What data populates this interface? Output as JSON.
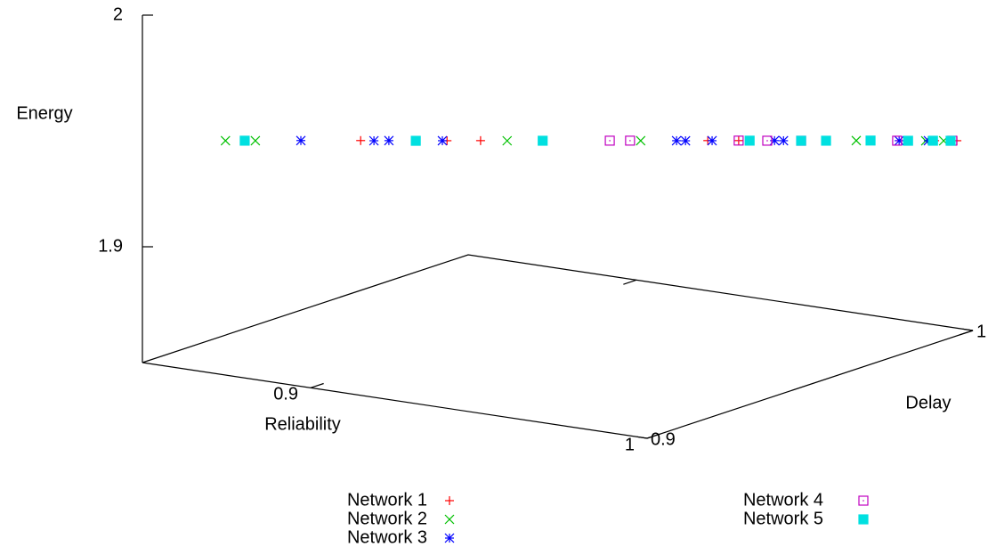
{
  "chart_data": {
    "type": "scatter3d",
    "xlabel": "Reliability",
    "ylabel": "Delay",
    "zlabel": "Energy",
    "xlim": [
      0.85,
      1
    ],
    "ylim": [
      0.9,
      1
    ],
    "zlim": [
      1.85,
      2
    ],
    "xticks": [
      0.9,
      1
    ],
    "yticks": [
      0.9,
      1
    ],
    "zticks": [
      1.9,
      2
    ],
    "legend": "bottom",
    "series": [
      {
        "name": "Network 1",
        "color": "#ff0000",
        "marker": "plus",
        "x": [
          0.8894,
          0.905,
          0.9111,
          0.9521,
          0.9577,
          0.9931,
          0.9963,
          0.9971
        ],
        "y": [
          0.9263,
          0.9367,
          0.9407,
          0.9681,
          0.9718,
          0.9954,
          0.9975,
          0.9981
        ],
        "z": [
          1.9422,
          1.9407,
          1.9402,
          1.9364,
          1.9359,
          1.9326,
          1.9323,
          1.9322
        ]
      },
      {
        "name": "Network 2",
        "color": "#00c000",
        "marker": "cross",
        "x": [
          0.865,
          0.8704,
          0.9159,
          0.94,
          0.9789,
          0.9915,
          0.9947
        ],
        "y": [
          0.91,
          0.9136,
          0.9439,
          0.96,
          0.986,
          0.9943,
          0.9965
        ],
        "z": [
          1.9444,
          1.9439,
          1.9397,
          1.9375,
          1.9339,
          1.9327,
          1.9324
        ]
      },
      {
        "name": "Network 3",
        "color": "#0000ff",
        "marker": "star",
        "x": [
          0.8786,
          0.8918,
          0.8945,
          0.9042,
          0.9465,
          0.9481,
          0.9529,
          0.9642,
          0.9658,
          0.9867,
          0.992
        ],
        "y": [
          0.9191,
          0.9279,
          0.9297,
          0.9361,
          0.9643,
          0.9654,
          0.9686,
          0.9761,
          0.9772,
          0.9911,
          0.9946
        ],
        "z": [
          1.9432,
          1.9419,
          1.9417,
          1.9408,
          1.9369,
          1.9367,
          1.9363,
          1.9353,
          1.9351,
          1.9332,
          1.9327
        ]
      },
      {
        "name": "Network 4",
        "color": "#c000c0",
        "marker": "box",
        "x": [
          0.9344,
          0.9381,
          0.9577,
          0.9629,
          0.969,
          0.9863,
          0.9963
        ],
        "y": [
          0.9563,
          0.9587,
          0.9718,
          0.9752,
          0.9793,
          0.9909,
          0.9975
        ],
        "z": [
          1.938,
          1.9377,
          1.9359,
          1.9354,
          1.9348,
          1.9332,
          1.9323
        ]
      },
      {
        "name": "Network 5",
        "color": "#00e0e0",
        "marker": "filled-box",
        "x": [
          0.8685,
          0.8994,
          0.9223,
          0.9597,
          0.969,
          0.9735,
          0.9815,
          0.9883,
          0.9928,
          0.996
        ],
        "y": [
          0.9123,
          0.9329,
          0.9482,
          0.9731,
          0.9793,
          0.9823,
          0.9877,
          0.9922,
          0.9952,
          0.9973
        ],
        "z": [
          1.9441,
          1.9412,
          1.9391,
          1.9357,
          1.9348,
          1.9344,
          1.9337,
          1.933,
          1.9326,
          1.9323
        ]
      }
    ]
  }
}
